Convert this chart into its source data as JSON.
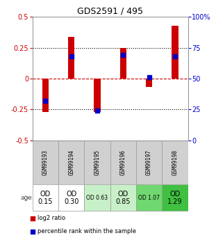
{
  "title": "GDS2591 / 495",
  "samples": [
    "GSM99193",
    "GSM99194",
    "GSM99195",
    "GSM99196",
    "GSM99197",
    "GSM99198"
  ],
  "log2_ratio": [
    -0.27,
    0.34,
    -0.27,
    0.25,
    -0.07,
    0.43
  ],
  "percentile_rank_pct": [
    32,
    68,
    24,
    69,
    51,
    68
  ],
  "age_labels": [
    "OD\n0.15",
    "OD\n0.30",
    "OD 0.63",
    "OD\n0.85",
    "OD 1.07",
    "OD\n1.29"
  ],
  "age_colors": [
    "#ffffff",
    "#ffffff",
    "#c8f0c8",
    "#c8f0c8",
    "#70d870",
    "#40c040"
  ],
  "age_fontsize": [
    7,
    7,
    5.5,
    7,
    5.5,
    7
  ],
  "ylim": [
    -0.5,
    0.5
  ],
  "yticks_left": [
    -0.5,
    -0.25,
    0,
    0.25,
    0.5
  ],
  "yticks_right": [
    0,
    25,
    50,
    75,
    100
  ],
  "ytick_labels_left": [
    "-0.5",
    "-0.25",
    "0",
    "0.25",
    "0.5"
  ],
  "ytick_labels_right": [
    "0",
    "25",
    "50",
    "75",
    "100%"
  ],
  "bar_color": "#cc0000",
  "dot_color": "#0000cc",
  "dot_size": 18,
  "hline_color": "#cc0000",
  "dotted_color": "#000000",
  "legend_label_red": "log2 ratio",
  "legend_label_blue": "percentile rank within the sample",
  "background_color": "#ffffff",
  "axis_label_color_left": "#cc0000",
  "axis_label_color_right": "#0000cc",
  "bar_width": 0.25
}
